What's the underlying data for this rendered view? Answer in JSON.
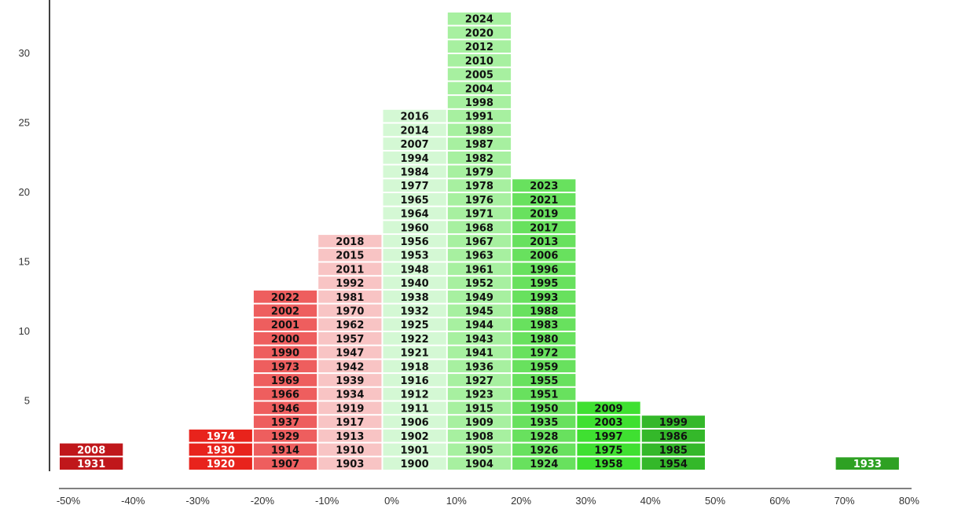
{
  "chart_data": {
    "type": "bar",
    "title": "",
    "xlabel": "",
    "ylabel": "",
    "x_ticks": [
      "-50%",
      "-40%",
      "-30%",
      "-20%",
      "-10%",
      "0%",
      "10%",
      "20%",
      "30%",
      "40%",
      "50%",
      "60%",
      "70%",
      "80%"
    ],
    "y_ticks": [
      5,
      10,
      15,
      20,
      25,
      30
    ],
    "ylim": [
      0,
      34
    ],
    "bins": [
      {
        "range": "-50% to -40%",
        "color": "#c0171b",
        "text_color": "#ffffff",
        "years": [
          "1931",
          "2008"
        ]
      },
      {
        "range": "-30% to -20%",
        "color": "#e8231c",
        "text_color": "#ffffff",
        "years": [
          "1920",
          "1930",
          "1974"
        ]
      },
      {
        "range": "-20% to -10%",
        "color": "#ee5e5e",
        "text_color": "#111111",
        "years": [
          "1907",
          "1914",
          "1929",
          "1937",
          "1946",
          "1966",
          "1969",
          "1973",
          "1990",
          "2000",
          "2001",
          "2002",
          "2022"
        ]
      },
      {
        "range": "-10% to 0%",
        "color": "#f8c4c4",
        "text_color": "#111111",
        "years": [
          "1903",
          "1910",
          "1913",
          "1917",
          "1919",
          "1934",
          "1939",
          "1942",
          "1947",
          "1957",
          "1962",
          "1970",
          "1981",
          "1992",
          "2011",
          "2015",
          "2018"
        ]
      },
      {
        "range": "0% to 10%",
        "color": "#d4f8d4",
        "text_color": "#111111",
        "years": [
          "1900",
          "1901",
          "1902",
          "1906",
          "1911",
          "1912",
          "1916",
          "1918",
          "1921",
          "1922",
          "1925",
          "1932",
          "1938",
          "1940",
          "1948",
          "1953",
          "1956",
          "1960",
          "1964",
          "1965",
          "1977",
          "1984",
          "1994",
          "2007",
          "2014",
          "2016"
        ]
      },
      {
        "range": "10% to 20%",
        "color": "#a7f0a0",
        "text_color": "#111111",
        "years": [
          "1904",
          "1905",
          "1908",
          "1909",
          "1915",
          "1923",
          "1927",
          "1936",
          "1941",
          "1943",
          "1944",
          "1945",
          "1949",
          "1952",
          "1961",
          "1963",
          "1967",
          "1968",
          "1971",
          "1976",
          "1978",
          "1979",
          "1982",
          "1987",
          "1989",
          "1991",
          "1998",
          "2004",
          "2005",
          "2010",
          "2012",
          "2020",
          "2024"
        ]
      },
      {
        "range": "20% to 30%",
        "color": "#68e15e",
        "text_color": "#111111",
        "years": [
          "1924",
          "1926",
          "1928",
          "1935",
          "1950",
          "1951",
          "1955",
          "1959",
          "1972",
          "1980",
          "1983",
          "1988",
          "1993",
          "1995",
          "1996",
          "2006",
          "2013",
          "2017",
          "2019",
          "2021",
          "2023"
        ]
      },
      {
        "range": "30% to 40%",
        "color": "#3fe031",
        "text_color": "#111111",
        "years": [
          "1958",
          "1975",
          "1997",
          "2003",
          "2009"
        ]
      },
      {
        "range": "40% to 50%",
        "color": "#34b82a",
        "text_color": "#111111",
        "years": [
          "1954",
          "1985",
          "1986",
          "1999"
        ]
      },
      {
        "range": "70% to 80%",
        "color": "#2ea123",
        "text_color": "#ffffff",
        "years": [
          "1933"
        ]
      }
    ]
  }
}
